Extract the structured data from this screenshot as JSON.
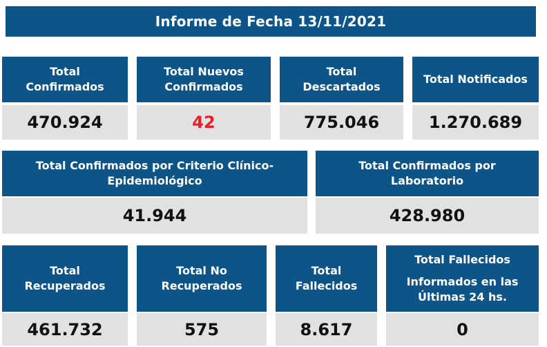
{
  "title": "Informe de Fecha 13/11/2021",
  "row1": [
    {
      "line1": "Total",
      "line2": "Confirmados",
      "value": "470.924"
    },
    {
      "line1": "Total Nuevos",
      "line2": "Confirmados",
      "value": "42",
      "value_color": "#ee1c25"
    },
    {
      "line1": "Total",
      "line2": "Descartados",
      "value": "775.046"
    },
    {
      "line1": "Total Notificados",
      "line2": "",
      "value": "1.270.689"
    }
  ],
  "row2": [
    {
      "line1": "Total Confirmados por Criterio Clínico-",
      "line2": "Epidemiológico",
      "value": "41.944"
    },
    {
      "line1": "Total Confirmados por",
      "line2": "Laboratorio",
      "value": "428.980"
    }
  ],
  "row3": [
    {
      "line1": "Total",
      "line2": "Recuperados",
      "value": "461.732"
    },
    {
      "line1": "Total No",
      "line2": "Recuperados",
      "value": "575"
    },
    {
      "line1": "Total",
      "line2": "Fallecidos",
      "value": "8.617"
    },
    {
      "line1": "Total Fallecidos",
      "line2": "Informados en las",
      "line3": "Últimas 24 hs.",
      "value": "0"
    }
  ],
  "colors": {
    "header_blue": "#0d5589",
    "value_gray": "#e1e1e1",
    "highlight_red": "#ee1c25"
  }
}
